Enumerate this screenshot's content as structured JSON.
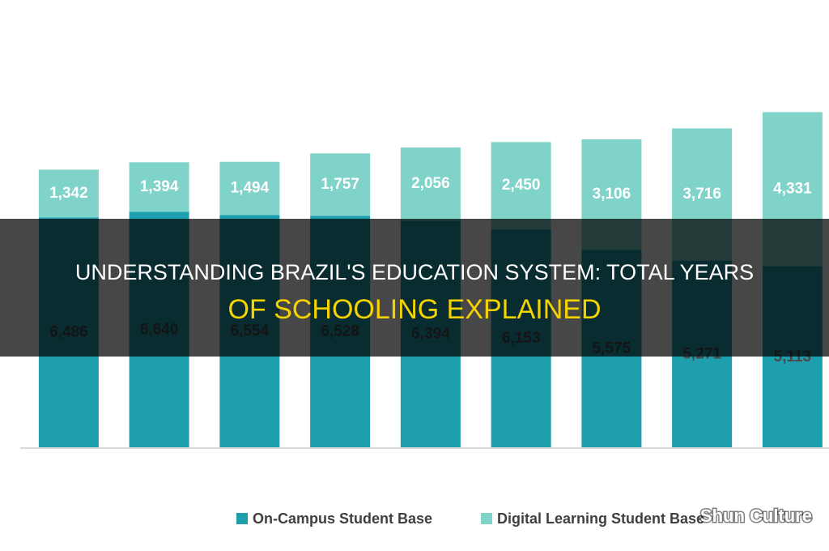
{
  "overlay_title": [
    "UNDERSTANDING BRAZIL'S EDUCATION SYSTEM: TOTAL YEARS",
    "OF SCHOOLING EXPLAINED"
  ],
  "watermark": "Shun Culture",
  "chart_data": {
    "type": "stacked-bar",
    "categories": [
      null,
      null,
      null,
      null,
      null,
      null,
      null,
      null,
      null
    ],
    "series": [
      {
        "name": "On-Campus Student Base",
        "color": "#1e9fae",
        "values": [
          6486,
          6640,
          6554,
          6528,
          6394,
          6153,
          5575,
          5271,
          5113
        ],
        "value_labels": [
          "6,486",
          "6,640",
          "6,554",
          "6,528",
          "6,394",
          "6,153",
          "5,575",
          "5,271",
          "5,113"
        ]
      },
      {
        "name": "Digital Learning Student Base",
        "color": "#7fd3c8",
        "values": [
          1342,
          1394,
          1494,
          1757,
          2056,
          2450,
          3106,
          3716,
          4331
        ],
        "value_labels": [
          "1,342",
          "1,394",
          "1,494",
          "1,757",
          "2,056",
          "2,450",
          "3,106",
          "3,716",
          "4,331"
        ]
      }
    ],
    "ylim": [
      0,
      10000
    ]
  }
}
